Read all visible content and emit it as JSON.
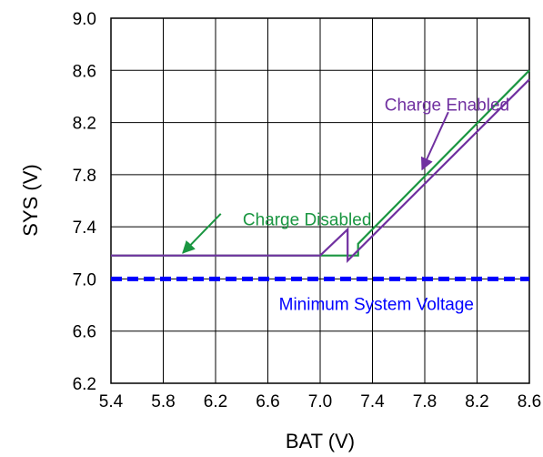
{
  "chart_data": {
    "type": "line",
    "xlabel": "BAT (V)",
    "ylabel": "SYS (V)",
    "xlim": [
      5.4,
      8.6
    ],
    "ylim": [
      6.2,
      9.0
    ],
    "xticks": [
      "5.4",
      "5.8",
      "6.2",
      "6.6",
      "7.0",
      "7.4",
      "7.8",
      "8.2",
      "8.6"
    ],
    "yticks": [
      "9.0",
      "8.6",
      "8.2",
      "7.8",
      "7.4",
      "7.0",
      "6.6",
      "6.2"
    ],
    "grid": true,
    "series": [
      {
        "name": "Charge Disabled",
        "color": "#1a9641",
        "x": [
          5.4,
          7.0,
          7.29,
          7.29,
          8.6
        ],
        "y": [
          7.18,
          7.18,
          7.18,
          7.27,
          8.6
        ]
      },
      {
        "name": "Charge Enabled",
        "color": "#7030a0",
        "x": [
          5.4,
          7.0,
          7.21,
          7.21,
          8.6
        ],
        "y": [
          7.18,
          7.18,
          7.38,
          7.14,
          8.53
        ]
      },
      {
        "name": "Minimum System Voltage",
        "color": "#0000ff",
        "x": [
          5.4,
          8.6
        ],
        "y": [
          7.0,
          7.0
        ]
      }
    ],
    "annotations": [
      {
        "text": "Charge Enabled",
        "color": "#7030a0",
        "label_x": 7.97,
        "label_y": 8.34,
        "arrow_from": [
          7.98,
          8.28
        ],
        "arrow_to": [
          7.78,
          7.84
        ]
      },
      {
        "text": "Charge Disabled",
        "color": "#1a9641",
        "label_x": 6.9,
        "label_y": 7.46,
        "arrow_from": [
          6.24,
          7.5
        ],
        "arrow_to": [
          5.95,
          7.2
        ]
      },
      {
        "text": "Minimum System Voltage",
        "color": "#0000ff",
        "label_x": 7.43,
        "label_y": 6.81
      }
    ]
  }
}
